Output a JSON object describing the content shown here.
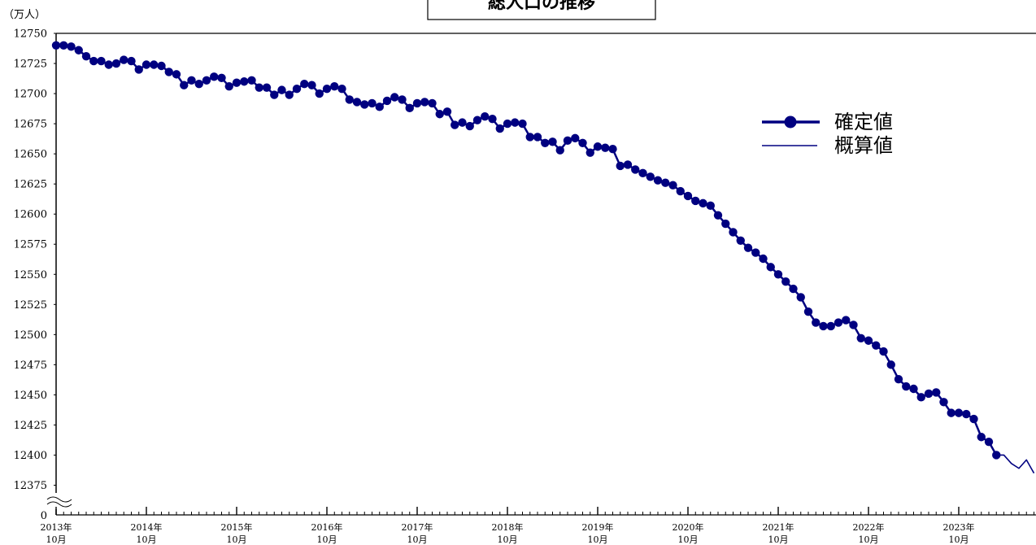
{
  "chart_data": {
    "type": "line",
    "title": "総人口の推移",
    "ylabel": "（万人）",
    "ylim": [
      12375,
      12750
    ],
    "y_ticks": [
      "12750",
      "12725",
      "12700",
      "12675",
      "12650",
      "12625",
      "12600",
      "12575",
      "12550",
      "12525",
      "12500",
      "12475",
      "12450",
      "12425",
      "12400",
      "12375"
    ],
    "y_zero_label": "0",
    "x_tick_labels": [
      {
        "year": "2013年",
        "month": "10月"
      },
      {
        "year": "2014年",
        "month": "10月"
      },
      {
        "year": "2015年",
        "month": "10月"
      },
      {
        "year": "2016年",
        "month": "10月"
      },
      {
        "year": "2017年",
        "month": "10月"
      },
      {
        "year": "2018年",
        "month": "10月"
      },
      {
        "year": "2019年",
        "month": "10月"
      },
      {
        "year": "2020年",
        "month": "10月"
      },
      {
        "year": "2021年",
        "month": "10月"
      },
      {
        "year": "2022年",
        "month": "10月"
      },
      {
        "year": "2023年",
        "month": "10月"
      }
    ],
    "x_start": "2013-10",
    "series": [
      {
        "name": "確定値",
        "color": "#000080",
        "marker": "circle",
        "values": [
          12740,
          12740,
          12739,
          12736,
          12731,
          12727,
          12727,
          12724,
          12725,
          12728,
          12727,
          12720,
          12724,
          12724,
          12723,
          12718,
          12716,
          12707,
          12711,
          12708,
          12711,
          12714,
          12713,
          12706,
          12709,
          12710,
          12711,
          12705,
          12705,
          12699,
          12703,
          12699,
          12704,
          12708,
          12707,
          12700,
          12704,
          12706,
          12704,
          12695,
          12693,
          12691,
          12692,
          12689,
          12694,
          12697,
          12695,
          12688,
          12692,
          12693,
          12692,
          12683,
          12685,
          12674,
          12676,
          12673,
          12678,
          12681,
          12679,
          12671,
          12675,
          12676,
          12675,
          12664,
          12664,
          12659,
          12660,
          12653,
          12661,
          12663,
          12659,
          12651,
          12656,
          12655,
          12654,
          12640,
          12641,
          12637,
          12634,
          12631,
          12628,
          12626,
          12624,
          12619,
          12615,
          12611,
          12609,
          12607,
          12599,
          12592,
          12585,
          12578,
          12572,
          12568,
          12563,
          12556,
          12550,
          12544,
          12538,
          12531,
          12519,
          12510,
          12507,
          12507,
          12510,
          12512,
          12508,
          12497,
          12495,
          12491,
          12486,
          12475,
          12463,
          12457,
          12455,
          12448,
          12451,
          12452,
          12444,
          12435,
          12435,
          12434,
          12430,
          12415,
          12411,
          12400
        ]
      },
      {
        "name": "概算値",
        "color": "#000080",
        "marker": "none",
        "start_index": 125,
        "values": [
          12400,
          12400,
          12393,
          12389,
          12396,
          12385
        ]
      }
    ],
    "legend_position": "right"
  }
}
